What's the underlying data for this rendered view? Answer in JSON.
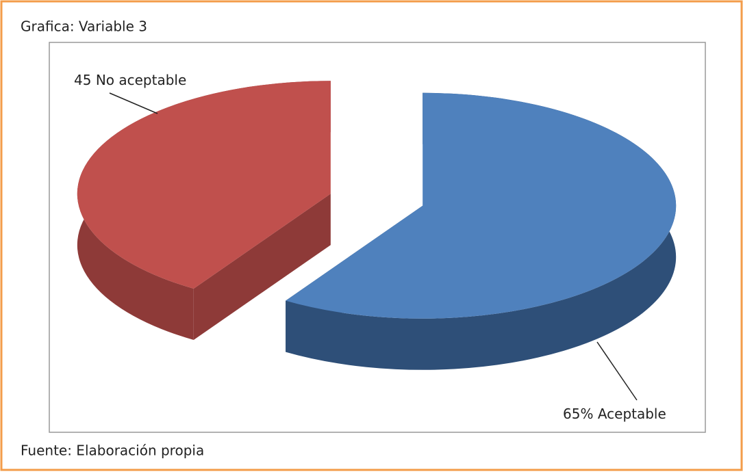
{
  "chart_data": {
    "type": "pie3d",
    "title": "Grafica: Variable 3",
    "source": "Fuente: Elaboración propia",
    "categories": [
      "No aceptable",
      "Aceptable"
    ],
    "values": [
      45,
      65
    ],
    "value_labels": [
      "45",
      "65%"
    ],
    "colors": [
      "#c0504d",
      "#4f81bd"
    ],
    "side_colors": [
      "#8e3a38",
      "#2e4f78"
    ]
  }
}
